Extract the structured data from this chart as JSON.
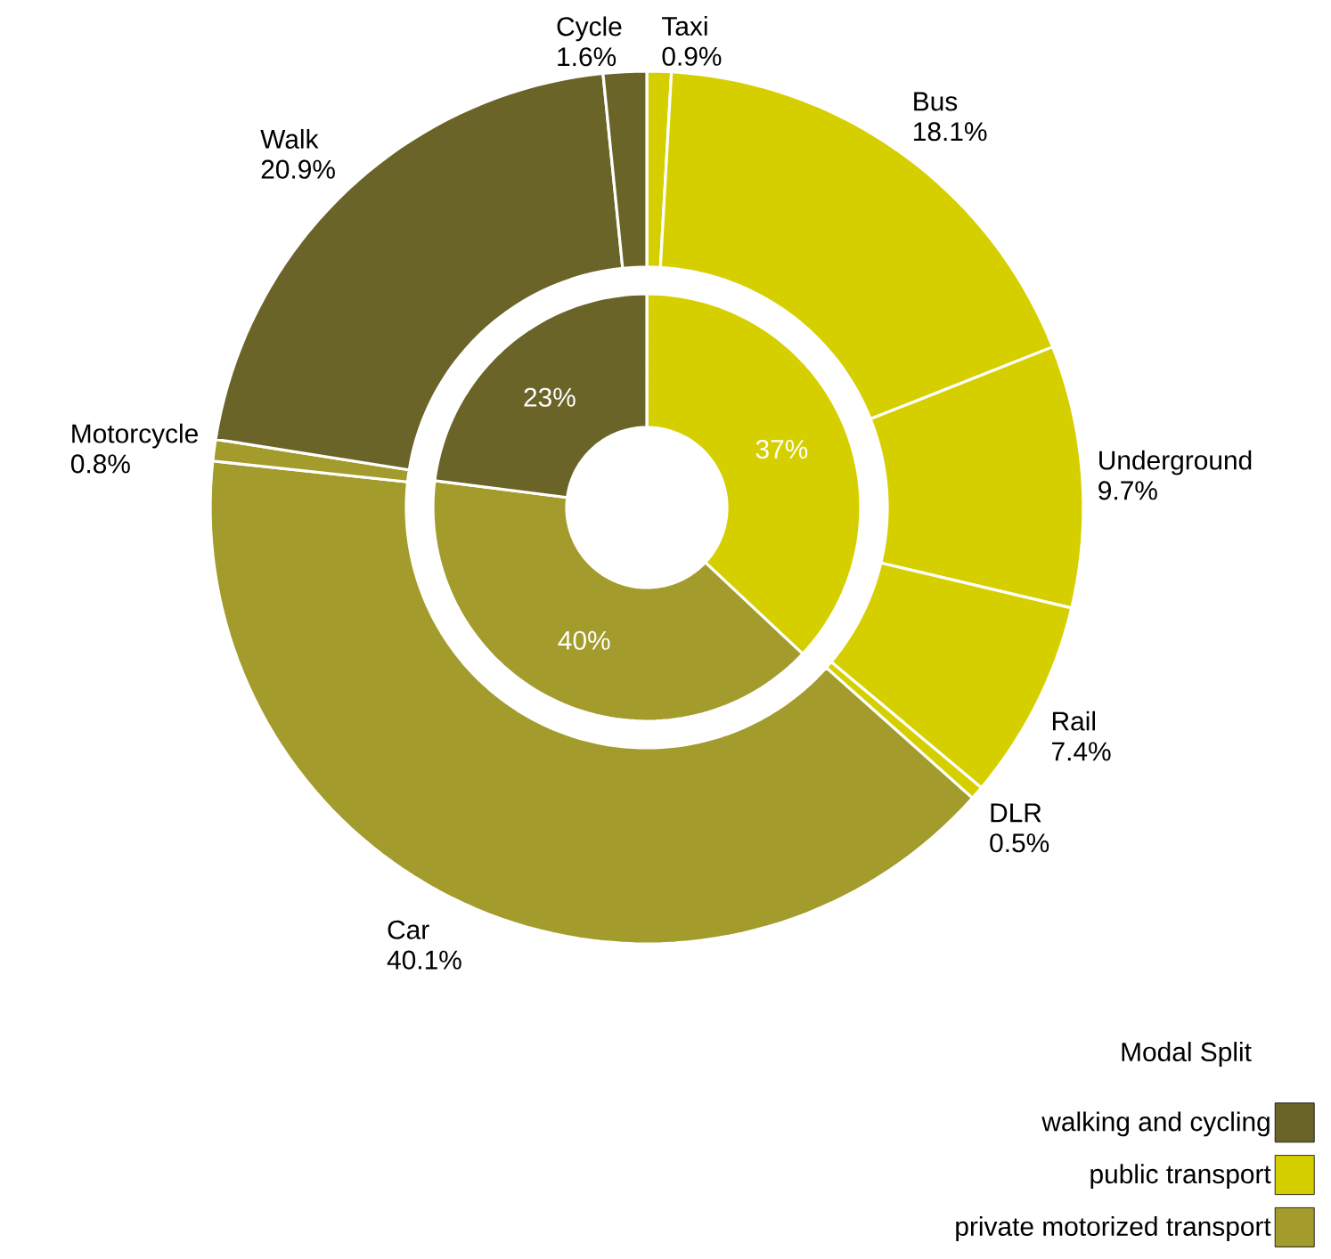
{
  "chart_data": [
    {
      "type": "donut",
      "categories": [
        "public transport",
        "private motorized transport",
        "walking and cycling"
      ],
      "values": [
        37,
        40,
        23
      ],
      "value_labels": [
        "37%",
        "40%",
        "23%"
      ],
      "colors": [
        "#d6cf00",
        "#a39b2c",
        "#6b6428"
      ],
      "legend": "bottom right",
      "legend_title": "Modal Split"
    },
    {
      "type": "donut",
      "categories": [
        "Taxi",
        "Bus",
        "Underground",
        "Rail",
        "DLR",
        "Car",
        "Motorcycle",
        "Walk",
        "Cycle"
      ],
      "values": [
        0.9,
        18.1,
        9.7,
        7.4,
        0.5,
        40.1,
        0.8,
        20.9,
        1.6
      ],
      "value_labels": [
        "0.9%",
        "18.1%",
        "9.7%",
        "7.4%",
        "0.5%",
        "40.1%",
        "0.8%",
        "20.9%",
        "1.6%"
      ],
      "colors": [
        "#d6cf00",
        "#d6cf00",
        "#d6cf00",
        "#d6cf00",
        "#d6cf00",
        "#a39b2c",
        "#a39b2c",
        "#6b6428",
        "#6b6428"
      ]
    }
  ]
}
